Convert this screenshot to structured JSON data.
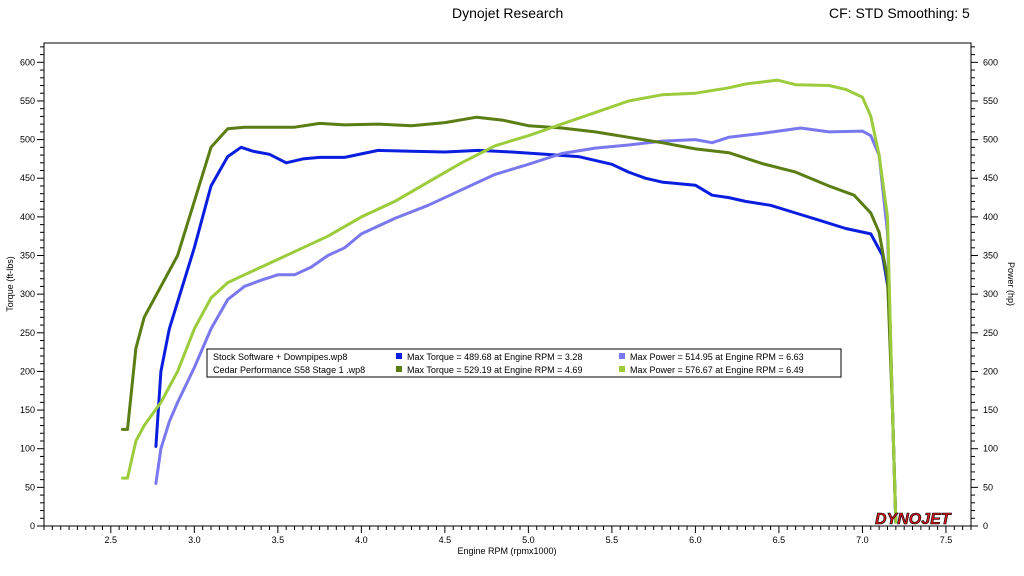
{
  "header": {
    "center_title": "Dynojet Research",
    "right_info": "CF: STD Smoothing: 5"
  },
  "logo_text": "DYNOJET",
  "colors": {
    "stock_torque": "#0a1ee0",
    "stock_power": "#7a78ee",
    "stage1_torque": "#5a7d14",
    "stage1_power": "#9ccc3c",
    "background": "#ffffff",
    "logo_red": "#d4141e"
  },
  "chart_data": {
    "type": "line",
    "xlabel": "Engine RPM (rpmx1000)",
    "ylabel_left": "Torque (ft-lbs)",
    "ylabel_right": "Power (hp)",
    "xlim": [
      2.1,
      7.65
    ],
    "ylim": [
      0,
      625
    ],
    "x_ticks": [
      "2.5",
      "3.0",
      "3.5",
      "4.0",
      "4.5",
      "5.0",
      "5.5",
      "6.0",
      "6.5",
      "7.0",
      "7.5"
    ],
    "y_ticks": [
      "0",
      "50",
      "100",
      "150",
      "200",
      "250",
      "300",
      "350",
      "400",
      "450",
      "500",
      "550",
      "600"
    ],
    "legend": {
      "placement": "center-left",
      "rows": [
        {
          "file": "Stock Software + Downpipes.wp8",
          "torque_label": "Max Torque = 489.68 at Engine RPM = 3.28",
          "power_label": "Max Power = 514.95 at Engine RPM = 6.63"
        },
        {
          "file": "Cedar Performance S58 Stage 1 .wp8",
          "torque_label": "Max Torque = 529.19 at Engine RPM = 4.69",
          "power_label": "Max Power = 576.67 at Engine RPM = 6.49"
        }
      ]
    },
    "series": [
      {
        "name": "Max Torque",
        "file": "Stock Software + Downpipes.wp8",
        "color_key": "stock_torque",
        "x": [
          2.77,
          2.8,
          2.85,
          2.9,
          3.0,
          3.1,
          3.2,
          3.28,
          3.35,
          3.45,
          3.55,
          3.65,
          3.75,
          3.9,
          4.1,
          4.3,
          4.5,
          4.7,
          4.9,
          5.1,
          5.3,
          5.5,
          5.6,
          5.7,
          5.8,
          6.0,
          6.1,
          6.2,
          6.3,
          6.45,
          6.6,
          6.75,
          6.9,
          7.05,
          7.12,
          7.16,
          7.18,
          7.2
        ],
        "y": [
          103,
          200,
          255,
          290,
          360,
          440,
          478,
          490,
          485,
          481,
          470,
          475,
          477,
          477,
          486,
          485,
          484,
          486,
          484,
          481,
          478,
          468,
          458,
          450,
          445,
          441,
          428,
          425,
          420,
          415,
          405,
          395,
          385,
          378,
          350,
          300,
          150,
          5
        ]
      },
      {
        "name": "Max Power",
        "file": "Stock Software + Downpipes.wp8",
        "color_key": "stock_power",
        "x": [
          2.77,
          2.8,
          2.85,
          2.9,
          3.0,
          3.1,
          3.2,
          3.3,
          3.4,
          3.5,
          3.6,
          3.7,
          3.8,
          3.9,
          4.0,
          4.2,
          4.4,
          4.6,
          4.8,
          5.0,
          5.2,
          5.4,
          5.6,
          5.8,
          6.0,
          6.1,
          6.2,
          6.4,
          6.63,
          6.8,
          7.0,
          7.05,
          7.1,
          7.15,
          7.18,
          7.2
        ],
        "y": [
          55,
          100,
          135,
          160,
          205,
          255,
          293,
          310,
          318,
          325,
          325,
          335,
          350,
          360,
          378,
          398,
          415,
          435,
          455,
          468,
          482,
          489,
          493,
          498,
          500,
          496,
          503,
          508,
          515,
          510,
          511,
          505,
          480,
          380,
          150,
          5
        ]
      },
      {
        "name": "Max Torque",
        "file": "Cedar Performance S58 Stage 1 .wp8",
        "color_key": "stage1_torque",
        "x": [
          2.57,
          2.6,
          2.65,
          2.7,
          2.8,
          2.9,
          3.0,
          3.1,
          3.2,
          3.3,
          3.45,
          3.6,
          3.75,
          3.9,
          4.1,
          4.3,
          4.5,
          4.69,
          4.85,
          5.0,
          5.2,
          5.4,
          5.6,
          5.8,
          6.0,
          6.2,
          6.4,
          6.6,
          6.8,
          6.95,
          7.05,
          7.1,
          7.15,
          7.18,
          7.2
        ],
        "y": [
          125,
          125,
          230,
          270,
          310,
          350,
          420,
          490,
          514,
          516,
          516,
          516,
          521,
          519,
          520,
          518,
          522,
          529,
          525,
          518,
          515,
          510,
          503,
          496,
          488,
          483,
          469,
          458,
          440,
          428,
          405,
          380,
          320,
          150,
          5
        ]
      },
      {
        "name": "Max Power",
        "file": "Cedar Performance S58 Stage 1 .wp8",
        "color_key": "stage1_power",
        "x": [
          2.57,
          2.6,
          2.65,
          2.7,
          2.8,
          2.9,
          3.0,
          3.1,
          3.2,
          3.3,
          3.4,
          3.6,
          3.8,
          4.0,
          4.2,
          4.4,
          4.6,
          4.8,
          5.0,
          5.2,
          5.4,
          5.6,
          5.8,
          6.0,
          6.2,
          6.3,
          6.49,
          6.6,
          6.8,
          6.9,
          7.0,
          7.05,
          7.1,
          7.15,
          7.18,
          7.2
        ],
        "y": [
          62,
          62,
          110,
          130,
          160,
          200,
          255,
          295,
          315,
          325,
          335,
          355,
          375,
          400,
          420,
          445,
          470,
          492,
          505,
          520,
          535,
          550,
          558,
          560,
          567,
          572,
          577,
          571,
          570,
          565,
          555,
          530,
          480,
          400,
          150,
          5
        ]
      }
    ]
  }
}
